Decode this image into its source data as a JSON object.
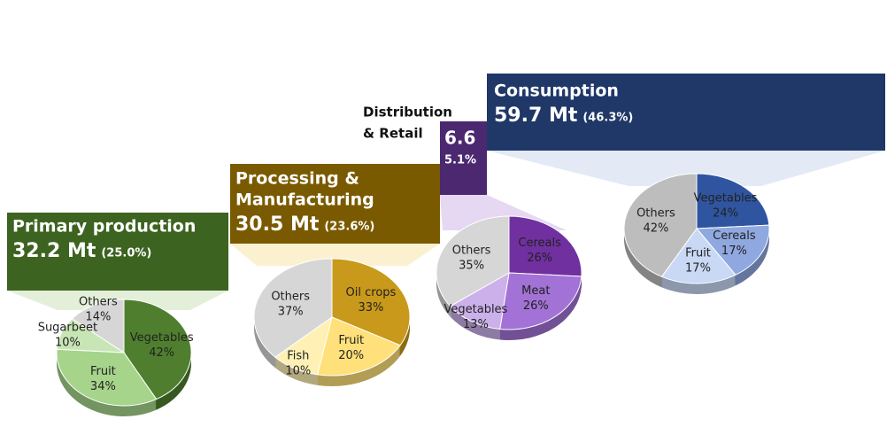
{
  "chart_data": [
    {
      "type": "pie",
      "title": [
        "Primary production"
      ],
      "total": "32.2 Mt",
      "share": "(25.0%)",
      "categories": [
        "Vegetables",
        "Fruit",
        "Sugarbeet",
        "Others"
      ],
      "values": [
        42,
        34,
        10,
        14
      ],
      "value_labels": [
        "42%",
        "34%",
        "10%",
        "14%"
      ],
      "colors": [
        "#4f7f2e",
        "#a6d48a",
        "#c8e6b5",
        "#d6d6d6"
      ],
      "header_color": "#3d6320"
    },
    {
      "type": "pie",
      "title": [
        "Processing &",
        "Manufacturing"
      ],
      "total": "30.5 Mt",
      "share": "(23.6%)",
      "categories": [
        "Oil crops",
        "Fruit",
        "Fish",
        "Others"
      ],
      "values": [
        33,
        20,
        10,
        37
      ],
      "value_labels": [
        "33%",
        "20%",
        "10%",
        "37%"
      ],
      "colors": [
        "#c8991a",
        "#ffe07a",
        "#fff0b3",
        "#d6d6d6"
      ],
      "header_color": "#7a5a00"
    },
    {
      "type": "pie",
      "title": [
        "Distribution",
        "& Retail"
      ],
      "total": "6.6",
      "share": "5.1%",
      "categories": [
        "Cereals",
        "Meat",
        "Vegetables",
        "Others"
      ],
      "values": [
        26,
        26,
        13,
        35
      ],
      "value_labels": [
        "26%",
        "26%",
        "13%",
        "35%"
      ],
      "colors": [
        "#7030a0",
        "#a272d6",
        "#cbb0ea",
        "#d6d6d6"
      ],
      "header_color": "#4b2870"
    },
    {
      "type": "pie",
      "title": [
        "Consumption"
      ],
      "total": "59.7 Mt",
      "share": "(46.3%)",
      "categories": [
        "Vegetables",
        "Cereals",
        "Fruit",
        "Others"
      ],
      "values": [
        24,
        17,
        17,
        42
      ],
      "value_labels": [
        "24%",
        "17%",
        "17%",
        "42%"
      ],
      "colors": [
        "#2f55a0",
        "#8fa8e0",
        "#c8d8f5",
        "#bdbdbd"
      ],
      "header_color": "#1f3868"
    }
  ]
}
